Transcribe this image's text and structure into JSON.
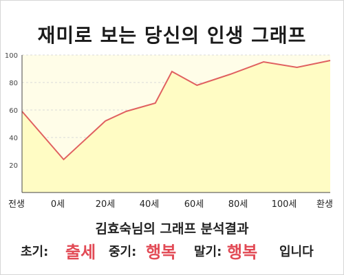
{
  "title": "재미로 보는 당신의 인생 그래프",
  "chart_data": {
    "type": "area",
    "x_labels": [
      "전생",
      "0세",
      "20세",
      "40세",
      "60세",
      "80세",
      "100세",
      "환생"
    ],
    "y_ticks": [
      20,
      40,
      60,
      80,
      100
    ],
    "ylim": [
      0,
      100
    ],
    "x": [
      -10,
      0,
      10,
      15,
      22,
      26,
      32,
      40,
      48,
      56,
      64
    ],
    "values": [
      59,
      24,
      52,
      59,
      65,
      88,
      78,
      86,
      95,
      91,
      96
    ],
    "line_color": "#e06060",
    "fill_color": "#fffcc4",
    "plot_bg": "#fffde8",
    "grid_color": "#d9d9d9",
    "grid": true
  },
  "result": {
    "heading": "김효숙님의 그래프 분석결과",
    "early_label": "초기:",
    "early_value": "출세",
    "middle_label": "중기:",
    "middle_value": "행복",
    "late_label": "말기:",
    "late_value": "행복",
    "ending": "입니다"
  }
}
